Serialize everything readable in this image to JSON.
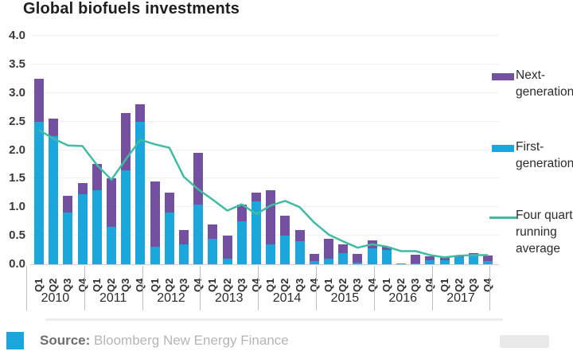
{
  "title": "Global biofuels investments",
  "colors": {
    "first_gen": "#1ca7dc",
    "next_gen": "#7450a0",
    "running_avg_line": "#3fbca3",
    "source_square": "#1ca7dc"
  },
  "legend": [
    {
      "name": "Next-generation",
      "swatch": "box",
      "color": "#7450a0",
      "lines": [
        "Next-",
        "generation"
      ]
    },
    {
      "name": "First-generation",
      "swatch": "box",
      "color": "#1ca7dc",
      "lines": [
        "First-",
        "generation"
      ]
    },
    {
      "name": "Four quarter running average",
      "swatch": "line",
      "color": "#3fbca3",
      "lines": [
        "Four quarter",
        "running",
        "average"
      ]
    }
  ],
  "source": {
    "label": "Source:",
    "text": " Bloomberg New Energy Finance"
  },
  "x_axis": {
    "years": [
      "2010",
      "2011",
      "2012",
      "2013",
      "2014",
      "2015",
      "2016",
      "2017"
    ],
    "quarters": [
      "Q1",
      "Q2",
      "Q3",
      "Q4"
    ]
  },
  "y_axis": {
    "ticks": [
      "0.0",
      "0.5",
      "1.0",
      "1.5",
      "2.0",
      "2.5",
      "3.0",
      "3.5",
      "4.0"
    ]
  },
  "chart_data": {
    "type": "bar",
    "stacked": true,
    "title": "Global biofuels investments",
    "xlabel": "",
    "ylabel": "",
    "ylim": [
      0,
      4.0
    ],
    "ytick_step": 0.5,
    "grid": "horizontal-faint",
    "legend_position": "right",
    "categories": [
      "2010 Q1",
      "2010 Q2",
      "2010 Q3",
      "2010 Q4",
      "2011 Q1",
      "2011 Q2",
      "2011 Q3",
      "2011 Q4",
      "2012 Q1",
      "2012 Q2",
      "2012 Q3",
      "2012 Q4",
      "2013 Q1",
      "2013 Q2",
      "2013 Q3",
      "2013 Q4",
      "2014 Q1",
      "2014 Q2",
      "2014 Q3",
      "2014 Q4",
      "2015 Q1",
      "2015 Q2",
      "2015 Q3",
      "2015 Q4",
      "2016 Q1",
      "2016 Q2",
      "2016 Q3",
      "2016 Q4",
      "2017 Q1",
      "2017 Q2",
      "2017 Q3",
      "2017 Q4"
    ],
    "series": [
      {
        "name": "First-generation",
        "type": "bar",
        "color": "#1ca7dc",
        "values": [
          2.5,
          2.25,
          0.9,
          1.22,
          1.3,
          0.65,
          1.65,
          2.5,
          0.3,
          0.9,
          0.35,
          1.05,
          0.45,
          0.1,
          0.75,
          1.1,
          0.35,
          0.5,
          0.4,
          0.05,
          0.1,
          0.2,
          0.03,
          0.28,
          0.25,
          0.01,
          0.02,
          0.07,
          0.07,
          0.12,
          0.15,
          0.05
        ]
      },
      {
        "name": "Next-generation",
        "type": "bar",
        "color": "#7450a0",
        "values": [
          0.75,
          0.3,
          0.3,
          0.2,
          0.45,
          0.85,
          1.0,
          0.3,
          1.15,
          0.35,
          0.25,
          0.9,
          0.25,
          0.4,
          0.3,
          0.15,
          0.95,
          0.35,
          0.2,
          0.13,
          0.35,
          0.15,
          0.15,
          0.14,
          0.05,
          0.01,
          0.15,
          0.07,
          0.07,
          0.03,
          0.05,
          0.1
        ]
      },
      {
        "name": "Four quarter running average",
        "type": "line",
        "color": "#3fbca3",
        "values": [
          2.35,
          2.2,
          2.08,
          2.07,
          1.74,
          1.48,
          1.84,
          2.18,
          2.1,
          2.04,
          1.53,
          1.31,
          1.13,
          0.94,
          1.05,
          0.88,
          1.03,
          1.11,
          1.0,
          0.73,
          0.52,
          0.4,
          0.29,
          0.35,
          0.31,
          0.23,
          0.23,
          0.16,
          0.12,
          0.15,
          0.16,
          0.16
        ]
      }
    ]
  }
}
